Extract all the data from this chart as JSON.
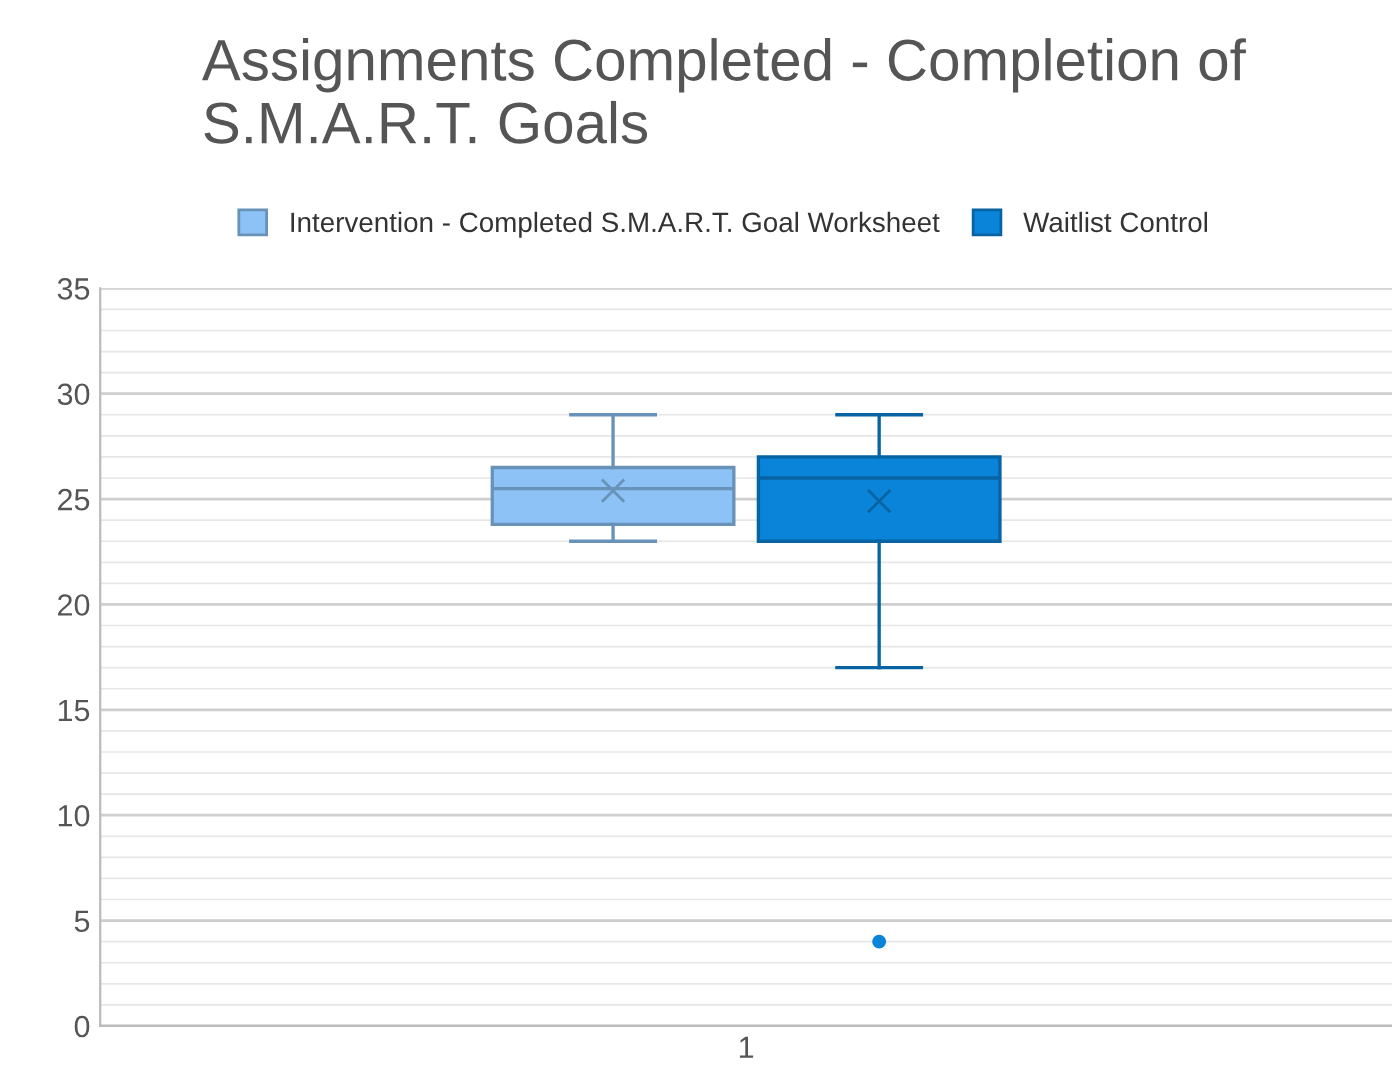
{
  "chart_data": {
    "type": "box",
    "title": "Assignments Completed - Completion of S.M.A.R.T. Goals",
    "categories": [
      "1"
    ],
    "series": [
      {
        "name": "Intervention - Completed S.M.A.R.T. Goal Worksheet",
        "color": "#8cc2f5",
        "boxes": [
          {
            "low": 23,
            "q1": 23.8,
            "median": 25.5,
            "q3": 26.5,
            "high": 29,
            "mean": 25.4
          }
        ]
      },
      {
        "name": "Waitlist Control",
        "color": "#0a84d9",
        "boxes": [
          {
            "low": 17,
            "q1": 23,
            "median": 26,
            "q3": 27,
            "high": 29,
            "mean": 24.9,
            "outliers": [
              4
            ]
          }
        ]
      }
    ],
    "ylim": [
      0,
      35
    ],
    "yticks": [
      0,
      5,
      10,
      15,
      20,
      25,
      30,
      35
    ],
    "grid": true,
    "legend": "top"
  }
}
